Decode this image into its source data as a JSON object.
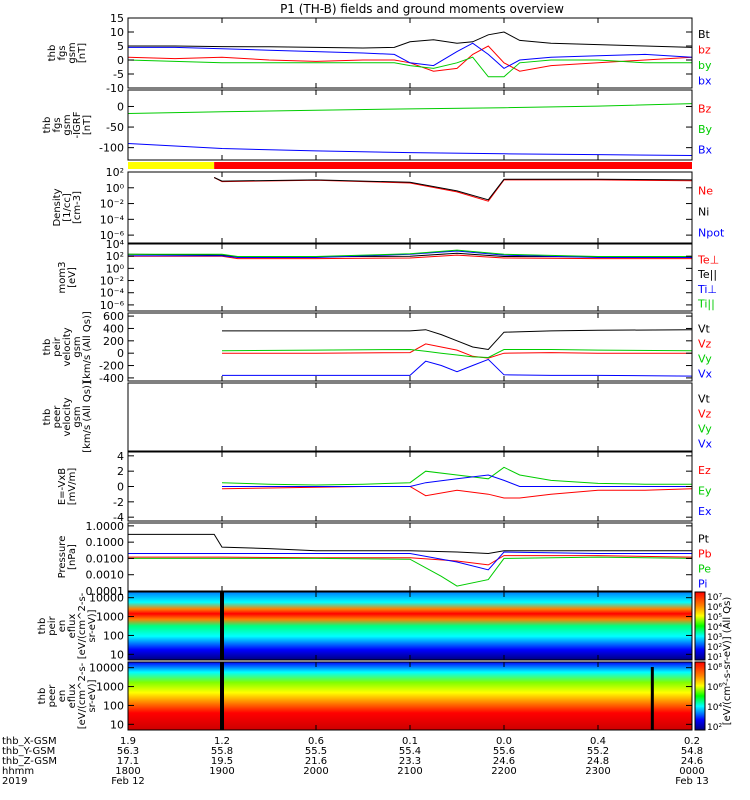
{
  "title": "P1 (TH-B) fields and ground moments overview",
  "chart_data": [
    {
      "type": "line",
      "ylabel_lines": [
        "thb",
        "fgs",
        "gsm",
        "[nT]"
      ],
      "ylim": [
        -10,
        15
      ],
      "yticks": [
        -10,
        -5,
        0,
        5,
        10,
        15
      ],
      "series": [
        {
          "name": "Bt",
          "color": "#000000",
          "x": [
            1800,
            1830,
            1900,
            1930,
            2000,
            2030,
            2050,
            2100,
            2115,
            2130,
            2140,
            2150,
            2200,
            2210,
            2230,
            2300,
            2330,
            2400
          ],
          "y": [
            5,
            5,
            4.8,
            4.7,
            4.5,
            4.3,
            4.5,
            6.5,
            7.2,
            6.0,
            6.5,
            9,
            10,
            7,
            6,
            5.5,
            5,
            4.5
          ]
        },
        {
          "name": "bz",
          "color": "#ff0000",
          "x": [
            1800,
            1830,
            1900,
            1930,
            2000,
            2030,
            2050,
            2100,
            2115,
            2130,
            2140,
            2150,
            2200,
            2210,
            2230,
            2300,
            2330,
            2400
          ],
          "y": [
            1,
            0.5,
            1,
            0,
            -0.5,
            0,
            0,
            -1,
            -4,
            -3,
            2,
            5,
            -1,
            -4,
            -2,
            -1,
            0,
            1
          ]
        },
        {
          "name": "by",
          "color": "#00cc00",
          "x": [
            1800,
            1830,
            1900,
            1930,
            2000,
            2030,
            2050,
            2100,
            2115,
            2130,
            2140,
            2150,
            2200,
            2210,
            2230,
            2300,
            2330,
            2400
          ],
          "y": [
            0,
            -0.5,
            -1,
            -1,
            -1,
            -1,
            -1,
            -2,
            -3,
            -1,
            1,
            -6,
            -6,
            -1,
            0,
            0,
            -1,
            -1
          ]
        },
        {
          "name": "bx",
          "color": "#0000ff",
          "x": [
            1800,
            1830,
            1900,
            1930,
            2000,
            2030,
            2050,
            2100,
            2115,
            2130,
            2140,
            2150,
            2200,
            2210,
            2230,
            2300,
            2330,
            2400
          ],
          "y": [
            4.5,
            4.5,
            4,
            3.5,
            3,
            2.5,
            2,
            -1,
            -2,
            3,
            6,
            2,
            -3,
            0,
            1,
            1.5,
            2,
            1
          ]
        }
      ]
    },
    {
      "type": "line",
      "ylabel_lines": [
        "thb",
        "fgs",
        "gsm",
        "-IGRF",
        "[nT]"
      ],
      "ylim": [
        -130,
        40
      ],
      "yticks": [
        -100,
        -50,
        0
      ],
      "series": [
        {
          "name": "Bz",
          "color": "#ff0000",
          "x": [],
          "y": []
        },
        {
          "name": "By",
          "color": "#00cc00",
          "x": [
            1800,
            1900,
            2000,
            2100,
            2200,
            2300,
            2400
          ],
          "y": [
            -17,
            -13,
            -9,
            -6,
            -3,
            1,
            7
          ]
        },
        {
          "name": "Bx",
          "color": "#0000ff",
          "x": [
            1800,
            1900,
            2000,
            2100,
            2200,
            2300,
            2400
          ],
          "y": [
            -90,
            -102,
            -108,
            -112,
            -115,
            -117,
            -119
          ]
        }
      ]
    },
    {
      "type": "line",
      "scale": "log",
      "ylabel_lines": [
        "Density",
        "[1/cc]",
        "[cm-3]"
      ],
      "ylim": [
        1e-07,
        100
      ],
      "yticks": [
        100,
        1,
        0.01,
        0.0001,
        1e-06
      ],
      "ytick_labels": [
        "10^2",
        "10^0",
        "10^-2",
        "10^-4",
        "10^-6"
      ],
      "series": [
        {
          "name": "Ne",
          "color": "#ff0000",
          "x": [
            1855,
            1900,
            2000,
            2100,
            2130,
            2150,
            2200,
            2230,
            2300,
            2400
          ],
          "y": [
            20,
            6,
            9,
            4,
            0.3,
            0.02,
            10,
            10,
            10,
            8
          ]
        },
        {
          "name": "Ni",
          "color": "#000000",
          "x": [
            1855,
            1900,
            2000,
            2100,
            2130,
            2150,
            2200,
            2230,
            2300,
            2400
          ],
          "y": [
            20,
            7,
            10,
            5,
            0.4,
            0.03,
            12,
            12,
            12,
            10
          ]
        },
        {
          "name": "Npot",
          "color": "#0000ff",
          "x": [],
          "y": []
        }
      ]
    },
    {
      "type": "line",
      "scale": "log",
      "ylabel_lines": [
        "mom3",
        "[eV]"
      ],
      "ylim": [
        1e-07,
        10000
      ],
      "yticks": [
        10000,
        100,
        1,
        0.01,
        0.0001,
        1e-06
      ],
      "ytick_labels": [
        "10^4",
        "10^2",
        "10^0",
        "10^-2",
        "10^-4",
        "10^-6"
      ],
      "series": [
        {
          "name": "Te⊥",
          "color": "#ff0000",
          "x": [
            1800,
            1900,
            1910,
            2000,
            2100,
            2130,
            2200,
            2300,
            2400
          ],
          "y": [
            100,
            100,
            40,
            40,
            50,
            150,
            50,
            40,
            40
          ]
        },
        {
          "name": "Te||",
          "color": "#000000",
          "x": [
            1800,
            1900,
            1910,
            2000,
            2100,
            2130,
            2200,
            2300,
            2400
          ],
          "y": [
            200,
            150,
            80,
            80,
            100,
            300,
            90,
            80,
            80
          ]
        },
        {
          "name": "Ti⊥",
          "color": "#0000ff",
          "x": [
            1800,
            1900,
            1910,
            2000,
            2100,
            2130,
            2200,
            2300,
            2400
          ],
          "y": [
            120,
            120,
            60,
            60,
            200,
            700,
            150,
            60,
            60
          ]
        },
        {
          "name": "Ti||",
          "color": "#00cc00",
          "x": [
            1800,
            1900,
            1910,
            2000,
            2100,
            2130,
            2200,
            2300,
            2400
          ],
          "y": [
            200,
            200,
            90,
            90,
            250,
            1000,
            200,
            90,
            90
          ]
        }
      ]
    },
    {
      "type": "line",
      "ylabel_lines": [
        "thb",
        "peir",
        "velocity",
        "gsm",
        "[km/s (All Qs)]"
      ],
      "ylim": [
        -450,
        650
      ],
      "yticks": [
        -400,
        -200,
        0,
        200,
        400,
        600
      ],
      "series": [
        {
          "name": "Vt",
          "color": "#000000",
          "x": [
            1900,
            2000,
            2100,
            2110,
            2120,
            2130,
            2140,
            2150,
            2200,
            2230,
            2300,
            2400
          ],
          "y": [
            360,
            360,
            360,
            380,
            300,
            200,
            100,
            60,
            340,
            360,
            370,
            380
          ]
        },
        {
          "name": "Vz",
          "color": "#ff0000",
          "x": [
            1900,
            2000,
            2100,
            2110,
            2120,
            2130,
            2140,
            2150,
            2200,
            2230,
            2300,
            2400
          ],
          "y": [
            0,
            0,
            10,
            150,
            100,
            50,
            -50,
            -80,
            0,
            10,
            0,
            0
          ]
        },
        {
          "name": "Vy",
          "color": "#00cc00",
          "x": [
            1900,
            2000,
            2100,
            2110,
            2120,
            2130,
            2140,
            2150,
            2200,
            2230,
            2300,
            2400
          ],
          "y": [
            40,
            50,
            60,
            30,
            0,
            -30,
            -60,
            -70,
            60,
            60,
            50,
            40
          ]
        },
        {
          "name": "Vx",
          "color": "#0000ff",
          "x": [
            1900,
            2000,
            2100,
            2110,
            2120,
            2130,
            2140,
            2150,
            2200,
            2230,
            2300,
            2400
          ],
          "y": [
            -360,
            -360,
            -360,
            -130,
            -200,
            -300,
            -200,
            -100,
            -350,
            -360,
            -360,
            -370
          ]
        }
      ]
    },
    {
      "type": "line",
      "ylabel_lines": [
        "thb",
        "peer",
        "velocity",
        "gsm",
        "[km/s (All Qs)]"
      ],
      "ylim": [
        0,
        1
      ],
      "yticks": [],
      "series": [
        {
          "name": "Vt",
          "color": "#000000",
          "x": [],
          "y": []
        },
        {
          "name": "Vz",
          "color": "#ff0000",
          "x": [],
          "y": []
        },
        {
          "name": "Vy",
          "color": "#00cc00",
          "x": [],
          "y": []
        },
        {
          "name": "Vx",
          "color": "#0000ff",
          "x": [],
          "y": []
        }
      ]
    },
    {
      "type": "line",
      "ylabel_lines": [
        "E=-VxB",
        "[mV/m]"
      ],
      "ylim": [
        -4.5,
        4.5
      ],
      "yticks": [
        -4,
        -2,
        0,
        2,
        4
      ],
      "series": [
        {
          "name": "Ez",
          "color": "#ff0000",
          "x": [
            1900,
            1930,
            2000,
            2030,
            2100,
            2110,
            2130,
            2150,
            2200,
            2210,
            2230,
            2300,
            2330,
            2400
          ],
          "y": [
            -0.3,
            -0.2,
            -0.1,
            0,
            0,
            -1.2,
            -0.5,
            -1,
            -1.5,
            -1.5,
            -1,
            -0.5,
            -0.5,
            -0.3
          ]
        },
        {
          "name": "Ey",
          "color": "#00cc00",
          "x": [
            1900,
            1930,
            2000,
            2030,
            2100,
            2110,
            2130,
            2150,
            2200,
            2210,
            2230,
            2300,
            2330,
            2400
          ],
          "y": [
            0.5,
            0.3,
            0.2,
            0.3,
            0.5,
            2,
            1.5,
            1,
            2.5,
            1.5,
            0.8,
            0.4,
            0.3,
            0.3
          ]
        },
        {
          "name": "Ex",
          "color": "#0000ff",
          "x": [
            1900,
            1930,
            2000,
            2030,
            2100,
            2110,
            2130,
            2150,
            2200,
            2210,
            2230,
            2300,
            2330,
            2400
          ],
          "y": [
            0,
            0,
            0,
            0,
            0,
            0.5,
            1,
            1.5,
            0.8,
            0,
            0,
            0,
            0,
            0
          ]
        }
      ]
    },
    {
      "type": "line",
      "scale": "log",
      "ylabel_lines": [
        "Pressure",
        "[nPa]"
      ],
      "ylim": [
        0.0001,
        1.5
      ],
      "yticks": [
        1,
        0.1,
        0.01,
        0.001,
        0.0001
      ],
      "ytick_labels": [
        "1.0000",
        "0.1000",
        "0.0100",
        "0.0010",
        "0.0001"
      ],
      "series": [
        {
          "name": "Pt",
          "color": "#000000",
          "x": [
            1800,
            1855,
            1900,
            1930,
            2000,
            2100,
            2130,
            2150,
            2200,
            2300,
            2400
          ],
          "y": [
            0.3,
            0.3,
            0.05,
            0.04,
            0.03,
            0.03,
            0.025,
            0.02,
            0.03,
            0.03,
            0.03
          ]
        },
        {
          "name": "Pb",
          "color": "#ff0000",
          "x": [
            1800,
            1900,
            2000,
            2100,
            2130,
            2150,
            2200,
            2300,
            2400
          ],
          "y": [
            0.012,
            0.012,
            0.011,
            0.011,
            0.007,
            0.004,
            0.015,
            0.015,
            0.012
          ]
        },
        {
          "name": "Pe",
          "color": "#00cc00",
          "x": [
            1800,
            1900,
            2000,
            2100,
            2120,
            2130,
            2150,
            2200,
            2300,
            2400
          ],
          "y": [
            0.01,
            0.01,
            0.01,
            0.009,
            0.0008,
            0.0002,
            0.0005,
            0.01,
            0.012,
            0.01
          ]
        },
        {
          "name": "Pi",
          "color": "#0000ff",
          "x": [
            1800,
            1900,
            2000,
            2100,
            2130,
            2150,
            2200,
            2300,
            2400
          ],
          "y": [
            0.02,
            0.02,
            0.02,
            0.02,
            0.006,
            0.002,
            0.025,
            0.02,
            0.02
          ]
        }
      ]
    },
    {
      "type": "heatmap",
      "ylabel_lines": [
        "thb",
        "peir",
        "en",
        "eflux",
        "[eV/(cm^2-s-",
        "sr-eV)]"
      ],
      "yticks": [
        10,
        100,
        1000,
        10000
      ],
      "ytick_labels": [
        "10",
        "100",
        "1000",
        "10000"
      ]
    },
    {
      "type": "heatmap",
      "ylabel_lines": [
        "thb",
        "peer",
        "en",
        "eflux",
        "[eV/(cm^2-s-",
        "sr-eV)]"
      ],
      "yticks": [
        10,
        100,
        1000,
        10000
      ],
      "ytick_labels": [
        "10",
        "100",
        "1000",
        "10000"
      ]
    }
  ],
  "colorbars": {
    "top_ticks": [
      "10^7",
      "10^6",
      "10^5",
      "10^4",
      "10^3",
      "10^2",
      "10^1"
    ],
    "bottom_ticks": [
      "10^8",
      "10^6",
      "10^4",
      "10^2"
    ],
    "label": "[eV/(cm^2-s-sr-eV)] (All Qs)"
  },
  "time_axis": {
    "xlim": [
      1800,
      2400
    ],
    "rows": [
      {
        "name": "thb_X-GSM",
        "values": [
          "1.9",
          "1.2",
          "0.6",
          "0.1",
          "0.0",
          "0.4",
          "0.2"
        ]
      },
      {
        "name": "thb_Y-GSM",
        "values": [
          "56.3",
          "55.8",
          "55.5",
          "55.4",
          "55.6",
          "55.2",
          "54.8"
        ]
      },
      {
        "name": "thb_Z-GSM",
        "values": [
          "17.1",
          "19.5",
          "21.6",
          "23.3",
          "24.6",
          "24.8",
          "24.6"
        ]
      },
      {
        "name": "hhmm",
        "values": [
          "1800",
          "1900",
          "2000",
          "2100",
          "2200",
          "2300",
          "0000"
        ]
      }
    ],
    "year": "2019",
    "start_date": "Feb 12",
    "end_date": "Feb 13"
  },
  "mode_bar": {
    "colors": [
      "#ffff00",
      "#ff0000"
    ]
  }
}
